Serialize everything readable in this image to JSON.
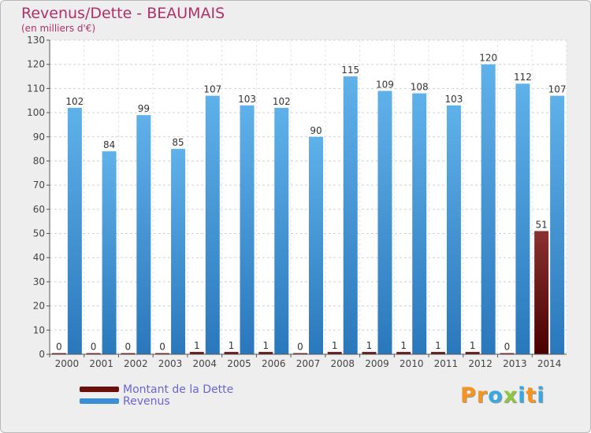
{
  "header": {
    "title": "Revenus/Dette - BEAUMAIS",
    "subtitle": "(en milliers d'€)"
  },
  "logo": {
    "letters": [
      "P",
      "r",
      "o",
      "x",
      "i",
      "t",
      "i"
    ],
    "colors": [
      "#f7941d",
      "#f7941d",
      "#3aa8e0",
      "#8dc63f",
      "#3aa8e0",
      "#f7941d",
      "#3aa8e0"
    ]
  },
  "chart_data": {
    "type": "bar",
    "categories": [
      "2000",
      "2001",
      "2002",
      "2003",
      "2004",
      "2005",
      "2006",
      "2007",
      "2008",
      "2009",
      "2010",
      "2011",
      "2012",
      "2013",
      "2014"
    ],
    "series": [
      {
        "name": "Montant de la Dette",
        "color": "#6b0f0f",
        "values": [
          0,
          0,
          0,
          0,
          1,
          1,
          1,
          0,
          1,
          1,
          1,
          1,
          1,
          0,
          51
        ]
      },
      {
        "name": "Revenus",
        "color": "#3a8fd4",
        "values": [
          102,
          84,
          99,
          85,
          107,
          103,
          102,
          90,
          115,
          109,
          108,
          103,
          120,
          112,
          107
        ]
      }
    ],
    "ylim": [
      0,
      130
    ],
    "yticks": [
      0,
      10,
      20,
      30,
      40,
      50,
      60,
      70,
      80,
      90,
      100,
      110,
      120,
      130
    ],
    "grid": true,
    "legend_position": "bottom-left"
  }
}
